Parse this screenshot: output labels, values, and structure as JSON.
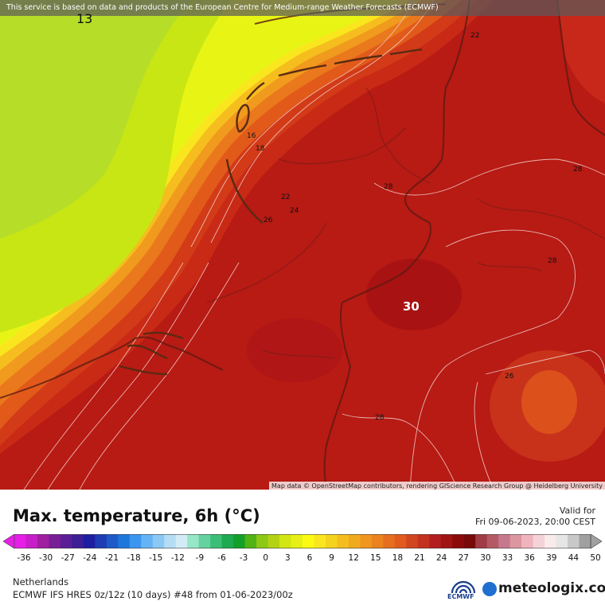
{
  "notice": "This service is based on data and products of the European Centre for Medium-range Weather Forecasts (ECMWF)",
  "attribution": "Map data © OpenStreetMap contributors, rendering GIScience Research Group @ Heidelberg University",
  "contour_labels": [
    {
      "text": "13"
    },
    {
      "text": "16"
    },
    {
      "text": "18"
    },
    {
      "text": "22"
    },
    {
      "text": "24"
    },
    {
      "text": "26"
    },
    {
      "text": "22"
    },
    {
      "text": "28"
    },
    {
      "text": "28"
    },
    {
      "text": "28"
    },
    {
      "text": "26"
    },
    {
      "text": "28"
    }
  ],
  "max_label": "30",
  "title": "Max. temperature, 6h (°C)",
  "valid_label": "Valid for",
  "valid_value": "Fri 09-06-2023, 20:00 CEST",
  "legend_ticks": [
    "-36",
    "-30",
    "-27",
    "-24",
    "-21",
    "-18",
    "-15",
    "-12",
    "-9",
    "-6",
    "-3",
    "0",
    "3",
    "6",
    "9",
    "12",
    "15",
    "18",
    "21",
    "24",
    "27",
    "30",
    "33",
    "36",
    "39",
    "44",
    "50"
  ],
  "legend_colors": [
    "#e61ee6",
    "#c81ec8",
    "#a01ea0",
    "#781e96",
    "#5a1e96",
    "#3c1e96",
    "#1e1ea0",
    "#1e3cb4",
    "#1e5ac8",
    "#1e78dc",
    "#3c96f0",
    "#64b4f5",
    "#8cc8f5",
    "#b4dcf5",
    "#d2ebf5",
    "#96e6c8",
    "#64d2a0",
    "#3cbe78",
    "#1eaa50",
    "#14a028",
    "#50b414",
    "#8cc814",
    "#b4d214",
    "#d2e614",
    "#e6f014",
    "#fafa14",
    "#fae61e",
    "#f5d21e",
    "#f5be1e",
    "#f0aa1e",
    "#f0961e",
    "#eb821e",
    "#e66e1e",
    "#e15a1e",
    "#d2461e",
    "#c3321e",
    "#b41e1e",
    "#a01414",
    "#8c0a0a",
    "#780a0a",
    "#a03c46",
    "#b45a64",
    "#c8788c",
    "#dc96a0",
    "#f0b4be",
    "#f5d2d7",
    "#faebeb",
    "#e6e6e6",
    "#c8c8c8",
    "#a0a0a0"
  ],
  "region": "Netherlands",
  "model": "ECMWF IFS HRES 0z/12z (10 days) #48 from  01-06-2023/00z",
  "ecmwf_text": "ECMWF",
  "brand": "meteologix.com"
}
